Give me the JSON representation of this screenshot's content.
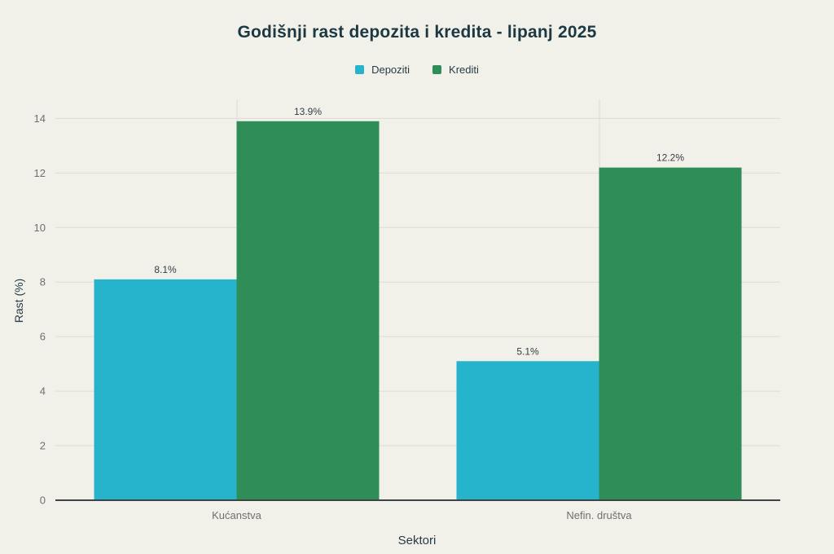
{
  "chart_data": {
    "type": "bar",
    "title": "Godišnji rast depozita i kredita - lipanj 2025",
    "categories": [
      "Kućanstva",
      "Nefin. društva"
    ],
    "series": [
      {
        "name": "Depoziti",
        "color": "#26b4cc",
        "values": [
          8.1,
          5.1
        ],
        "labels": [
          "8.1%",
          "5.1%"
        ]
      },
      {
        "name": "Krediti",
        "color": "#2f8e58",
        "values": [
          13.9,
          12.2
        ],
        "labels": [
          "13.9%",
          "12.2%"
        ]
      }
    ],
    "xlabel": "Sektori",
    "ylabel": "Rast (%)",
    "ylim": [
      0,
      14.7
    ],
    "yticks": [
      0,
      2,
      4,
      6,
      8,
      10,
      12,
      14
    ],
    "grid": true,
    "legend_position": "top-center"
  },
  "colors": {
    "background": "#f1f1ea",
    "title": "#1b3843",
    "axis_title": "#273b45",
    "tick_label": "#6f6f6f",
    "data_label": "#333e46",
    "grid": "#dcdcd3",
    "axis_line": "#3e4347",
    "legend_text": "#273b45"
  }
}
